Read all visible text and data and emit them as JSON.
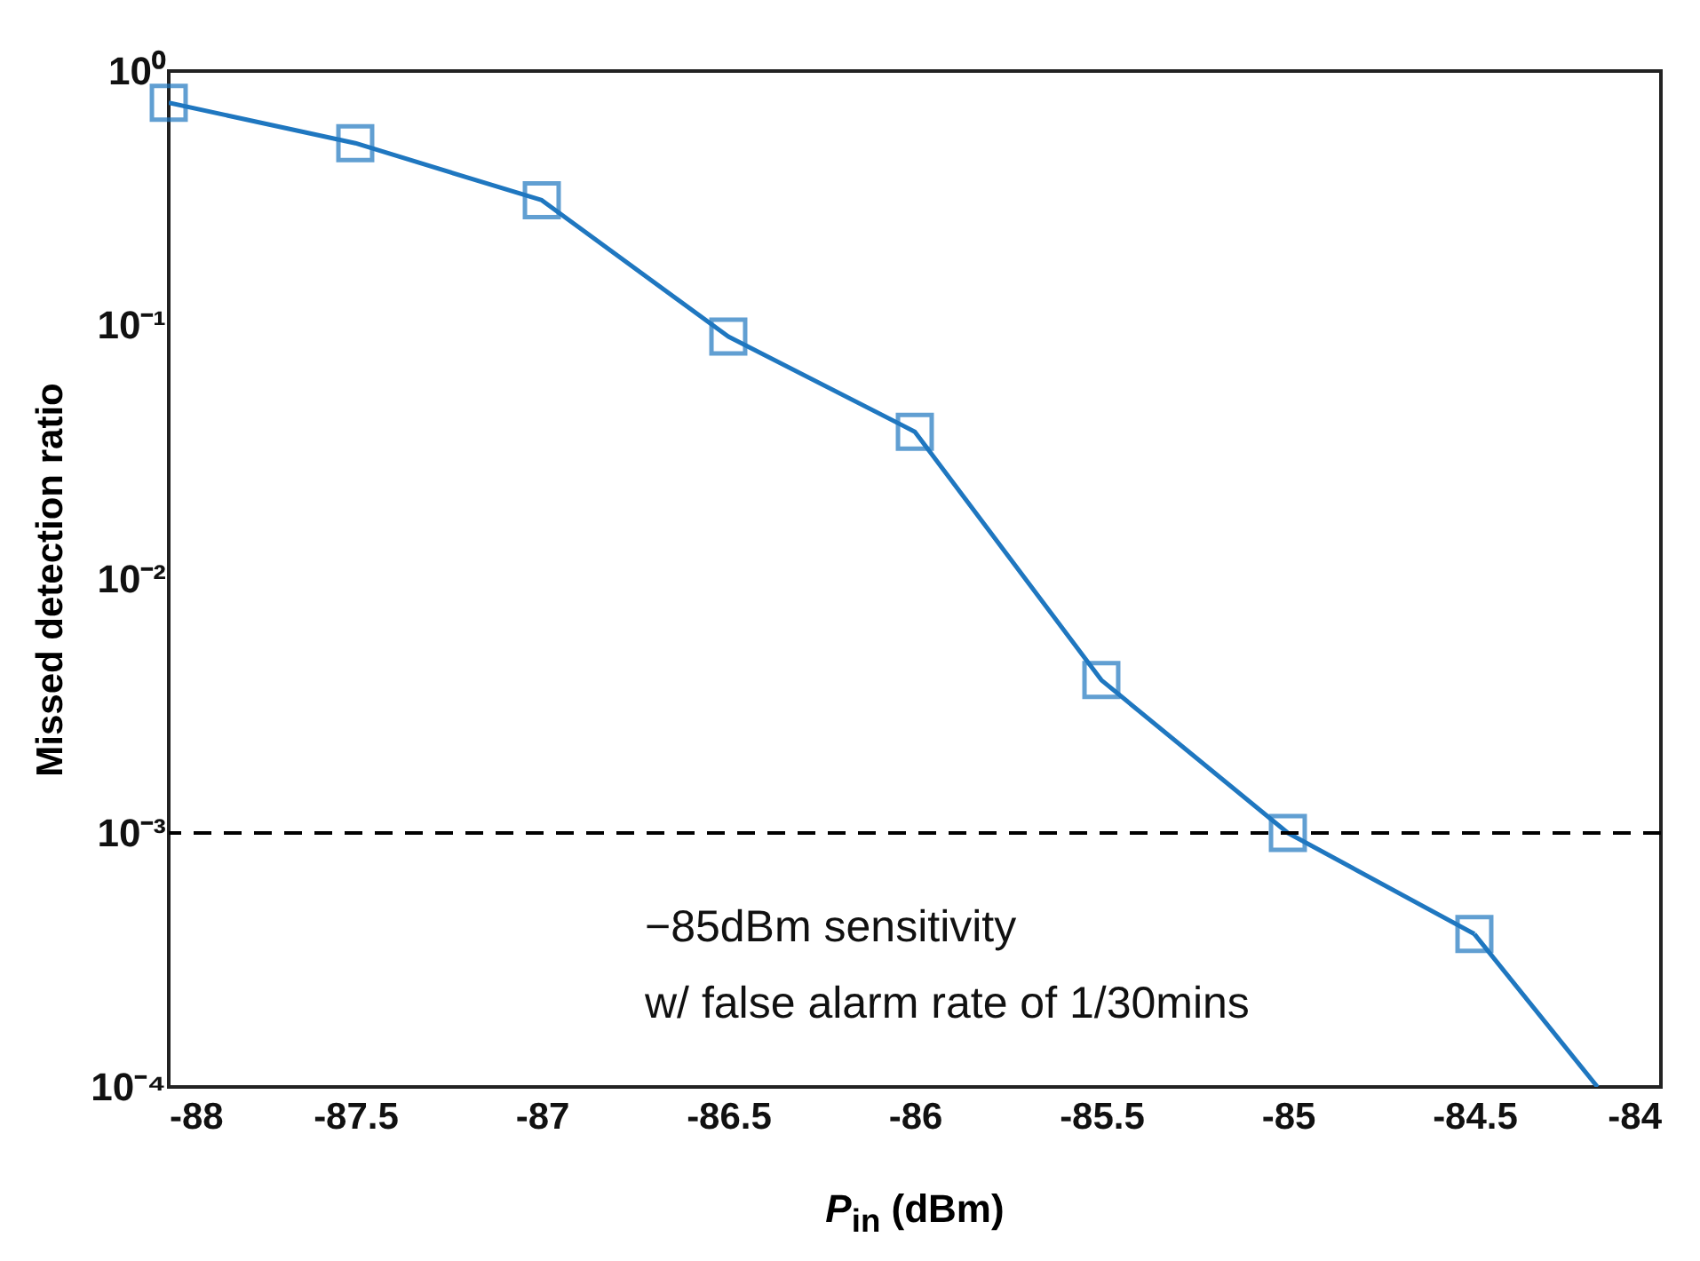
{
  "chart_data": {
    "type": "line",
    "xlabel": "P$_{in}$ (dBm)",
    "ylabel": "Missed detection ratio",
    "log": "y",
    "xlim": [
      -88,
      -84
    ],
    "xticks": [
      -88,
      -87.5,
      -87,
      -86.5,
      -86,
      -85.5,
      -85,
      -84.5,
      -84
    ],
    "ylim": [
      0.0001,
      1
    ],
    "yticks": [
      {
        "value": 0.0001,
        "label": "10⁻⁴"
      },
      {
        "value": 0.001,
        "label": "10⁻³"
      },
      {
        "value": 0.01,
        "label": "10⁻²"
      },
      {
        "value": 0.1,
        "label": "10⁻¹"
      },
      {
        "value": 1,
        "label": "10⁰"
      }
    ],
    "grid": false,
    "series": [
      {
        "color": "#1f77c0",
        "marker": "square",
        "x": [
          -88,
          -87.5,
          -87,
          -86.5,
          -86,
          -85.5,
          -85,
          -84.5
        ],
        "values": [
          0.75,
          0.52,
          0.31,
          0.09,
          0.038,
          0.004,
          0.001,
          0.0004
        ]
      },
      {
        "color": "#1f77c0",
        "marker": "none",
        "x": [
          -84.5,
          -84.17
        ],
        "values": [
          0.0004,
          0.0001
        ]
      }
    ],
    "ref_lines": [
      {
        "axis": "y",
        "value": 0.001,
        "color": "#000000",
        "line_style": "dashed"
      }
    ],
    "annotations": [
      "−85dBm sensitivity",
      "w/ false alarm rate of 1/30mins"
    ]
  }
}
